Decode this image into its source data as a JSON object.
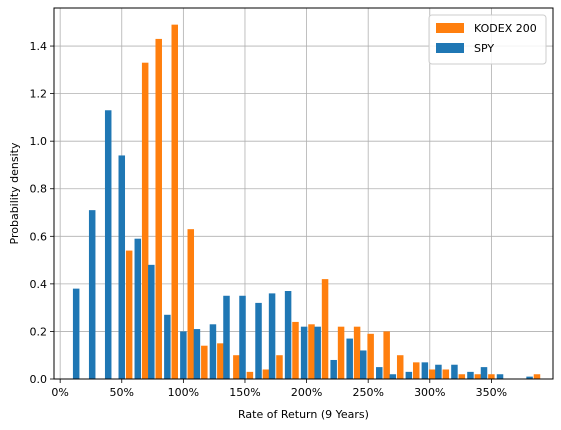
{
  "chart_data": {
    "type": "bar",
    "xlabel": "Rate of Return (9 Years)",
    "ylabel": "Probability density",
    "xlim": [
      -0.05,
      4.0
    ],
    "ylim": [
      0,
      1.56
    ],
    "xticks": [
      0,
      0.5,
      1.0,
      1.5,
      2.0,
      2.5,
      3.0,
      3.5
    ],
    "xtick_labels": [
      "0%",
      "50%",
      "100%",
      "150%",
      "200%",
      "250%",
      "300%",
      "350%"
    ],
    "yticks": [
      0.0,
      0.2,
      0.4,
      0.6,
      0.8,
      1.0,
      1.2,
      1.4
    ],
    "ytick_labels": [
      "0.0",
      "0.2",
      "0.4",
      "0.6",
      "0.8",
      "1.0",
      "1.2",
      "1.4"
    ],
    "grid": true,
    "legend_position": "top-right",
    "series": [
      {
        "name": "KODEX 200",
        "color": "#ff7f0e",
        "x": [
          0.56,
          0.69,
          0.8,
          0.93,
          1.06,
          1.17,
          1.3,
          1.43,
          1.54,
          1.67,
          1.78,
          1.91,
          2.04,
          2.15,
          2.28,
          2.41,
          2.52,
          2.65,
          2.76,
          2.89,
          3.02,
          3.13,
          3.26,
          3.39,
          3.5,
          3.63,
          3.74,
          3.87
        ],
        "values": [
          0.54,
          1.33,
          1.43,
          1.49,
          0.63,
          0.14,
          0.15,
          0.1,
          0.03,
          0.04,
          0.1,
          0.24,
          0.23,
          0.42,
          0.22,
          0.22,
          0.19,
          0.2,
          0.1,
          0.07,
          0.04,
          0.04,
          0.02,
          0.02,
          0.02,
          0.0,
          0.0,
          0.02
        ]
      },
      {
        "name": "SPY",
        "color": "#1f77b4",
        "x": [
          0.13,
          0.26,
          0.39,
          0.5,
          0.63,
          0.74,
          0.87,
          1.0,
          1.11,
          1.24,
          1.35,
          1.48,
          1.61,
          1.72,
          1.85,
          1.98,
          2.09,
          2.22,
          2.35,
          2.46,
          2.59,
          2.7,
          2.83,
          2.96,
          3.07,
          3.2,
          3.33,
          3.44,
          3.57,
          3.68,
          3.81
        ],
        "values": [
          0.38,
          0.71,
          1.13,
          0.94,
          0.59,
          0.48,
          0.27,
          0.2,
          0.21,
          0.23,
          0.35,
          0.35,
          0.32,
          0.36,
          0.37,
          0.22,
          0.22,
          0.08,
          0.17,
          0.12,
          0.05,
          0.02,
          0.03,
          0.07,
          0.06,
          0.06,
          0.03,
          0.05,
          0.02,
          0.0,
          0.01
        ]
      }
    ]
  }
}
